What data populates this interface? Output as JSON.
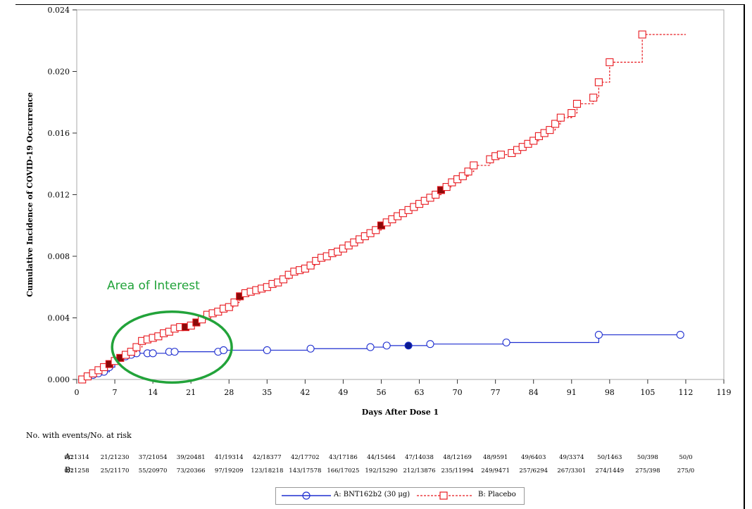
{
  "chart_data": {
    "type": "line",
    "ylabel": "Cumulative Incidence of COVID-19 Occurrence",
    "xlabel": "Days After Dose 1",
    "xlim": [
      0,
      119
    ],
    "ylim": [
      0,
      0.024
    ],
    "x_ticks": [
      0,
      7,
      14,
      21,
      28,
      35,
      42,
      49,
      56,
      63,
      70,
      77,
      84,
      91,
      98,
      105,
      112,
      119
    ],
    "y_ticks": [
      0.0,
      0.004,
      0.008,
      0.012,
      0.016,
      0.02,
      0.024
    ],
    "x_tick_labels": [
      "0",
      "7",
      "14",
      "21",
      "28",
      "35",
      "42",
      "49",
      "56",
      "63",
      "70",
      "77",
      "84",
      "91",
      "98",
      "105",
      "112",
      "119"
    ],
    "y_tick_labels": [
      "0.000",
      "0.004",
      "0.008",
      "0.012",
      "0.016",
      "0.020",
      "0.024"
    ],
    "grid": false,
    "legend_position": "bottom",
    "annotation": {
      "text": "Area of Interest",
      "color": "#22a33a",
      "ellipse_center": [
        17.5,
        0.0021
      ],
      "ellipse_radius": [
        11.0,
        0.0023
      ]
    },
    "series": [
      {
        "name": "A: BNT162b2 (30 μg)",
        "color": "#1f2fd0",
        "line_style": "solid",
        "marker": "circle",
        "points": [
          [
            1,
            0.0
          ],
          [
            2,
            0.0002
          ],
          [
            3,
            0.0003
          ],
          [
            4,
            0.0004
          ],
          [
            5,
            0.0005
          ],
          [
            6,
            0.0008
          ],
          [
            7,
            0.0012
          ],
          [
            8,
            0.0014
          ],
          [
            9,
            0.0015
          ],
          [
            10,
            0.0016
          ],
          [
            11,
            0.0017
          ],
          [
            13,
            0.0017
          ],
          [
            14,
            0.0017
          ],
          [
            17,
            0.0018
          ],
          [
            18,
            0.0018
          ],
          [
            26,
            0.0018
          ],
          [
            27,
            0.0019
          ],
          [
            35,
            0.0019
          ],
          [
            43,
            0.002
          ],
          [
            54,
            0.0021
          ],
          [
            57,
            0.0022
          ],
          [
            61,
            0.0022
          ],
          [
            65,
            0.0023
          ],
          [
            79,
            0.0024
          ],
          [
            96,
            0.0029
          ],
          [
            111,
            0.0029
          ]
        ],
        "filled_points": [
          [
            61,
            0.0022
          ]
        ]
      },
      {
        "name": "B: Placebo",
        "color": "#e8191f",
        "line_style": "dashed",
        "marker": "square",
        "points": [
          [
            1,
            0.0
          ],
          [
            2,
            0.0002
          ],
          [
            3,
            0.0004
          ],
          [
            4,
            0.0006
          ],
          [
            5,
            0.0008
          ],
          [
            6,
            0.001
          ],
          [
            7,
            0.0012
          ],
          [
            8,
            0.0014
          ],
          [
            9,
            0.0016
          ],
          [
            10,
            0.0018
          ],
          [
            11,
            0.0021
          ],
          [
            12,
            0.0025
          ],
          [
            13,
            0.0026
          ],
          [
            14,
            0.0027
          ],
          [
            15,
            0.0028
          ],
          [
            16,
            0.003
          ],
          [
            17,
            0.0031
          ],
          [
            18,
            0.0033
          ],
          [
            19,
            0.0034
          ],
          [
            20,
            0.0034
          ],
          [
            21,
            0.0035
          ],
          [
            22,
            0.0037
          ],
          [
            23,
            0.0039
          ],
          [
            24,
            0.0042
          ],
          [
            25,
            0.0043
          ],
          [
            26,
            0.0044
          ],
          [
            27,
            0.0046
          ],
          [
            28,
            0.0047
          ],
          [
            29,
            0.005
          ],
          [
            30,
            0.0054
          ],
          [
            31,
            0.0056
          ],
          [
            32,
            0.0057
          ],
          [
            33,
            0.0058
          ],
          [
            34,
            0.0059
          ],
          [
            35,
            0.006
          ],
          [
            36,
            0.0062
          ],
          [
            37,
            0.0063
          ],
          [
            38,
            0.0065
          ],
          [
            39,
            0.0068
          ],
          [
            40,
            0.007
          ],
          [
            41,
            0.0071
          ],
          [
            42,
            0.0072
          ],
          [
            43,
            0.0074
          ],
          [
            44,
            0.0077
          ],
          [
            45,
            0.0079
          ],
          [
            46,
            0.008
          ],
          [
            47,
            0.0082
          ],
          [
            48,
            0.0083
          ],
          [
            49,
            0.0085
          ],
          [
            50,
            0.0087
          ],
          [
            51,
            0.0089
          ],
          [
            52,
            0.0091
          ],
          [
            53,
            0.0093
          ],
          [
            54,
            0.0095
          ],
          [
            55,
            0.0097
          ],
          [
            56,
            0.01
          ],
          [
            57,
            0.0102
          ],
          [
            58,
            0.0104
          ],
          [
            59,
            0.0106
          ],
          [
            60,
            0.0108
          ],
          [
            61,
            0.011
          ],
          [
            62,
            0.0112
          ],
          [
            63,
            0.0114
          ],
          [
            64,
            0.0116
          ],
          [
            65,
            0.0118
          ],
          [
            66,
            0.012
          ],
          [
            67,
            0.0123
          ],
          [
            68,
            0.0125
          ],
          [
            69,
            0.0128
          ],
          [
            70,
            0.013
          ],
          [
            71,
            0.0132
          ],
          [
            72,
            0.0135
          ],
          [
            73,
            0.0139
          ],
          [
            76,
            0.0143
          ],
          [
            77,
            0.0145
          ],
          [
            78,
            0.0146
          ],
          [
            80,
            0.0147
          ],
          [
            81,
            0.0149
          ],
          [
            82,
            0.0151
          ],
          [
            83,
            0.0153
          ],
          [
            84,
            0.0155
          ],
          [
            85,
            0.0158
          ],
          [
            86,
            0.016
          ],
          [
            87,
            0.0162
          ],
          [
            88,
            0.0166
          ],
          [
            89,
            0.017
          ],
          [
            91,
            0.0173
          ],
          [
            92,
            0.0179
          ],
          [
            95,
            0.0183
          ],
          [
            96,
            0.0193
          ],
          [
            98,
            0.0206
          ],
          [
            104,
            0.0224
          ],
          [
            112,
            0.0224
          ]
        ],
        "filled_points": [
          [
            6,
            0.001
          ],
          [
            8,
            0.0014
          ],
          [
            20,
            0.0034
          ],
          [
            22,
            0.0037
          ],
          [
            30,
            0.0054
          ],
          [
            56,
            0.01
          ],
          [
            67,
            0.0123
          ]
        ]
      }
    ]
  },
  "risk_table": {
    "title": "No. with events/No. at risk",
    "rows": [
      {
        "label": "A:",
        "values": [
          "0/21314",
          "21/21230",
          "37/21054",
          "39/20481",
          "41/19314",
          "42/18377",
          "42/17702",
          "43/17186",
          "44/15464",
          "47/14038",
          "48/12169",
          "48/9591",
          "49/6403",
          "49/3374",
          "50/1463",
          "50/398",
          "50/0"
        ]
      },
      {
        "label": "B:",
        "values": [
          "0/21258",
          "25/21170",
          "55/20970",
          "73/20366",
          "97/19209",
          "123/18218",
          "143/17578",
          "166/17025",
          "192/15290",
          "212/13876",
          "235/11994",
          "249/9471",
          "257/6294",
          "267/3301",
          "274/1449",
          "275/398",
          "275/0"
        ]
      }
    ]
  },
  "legend": {
    "a_label": "A: BNT162b2 (30 μg)",
    "b_label": "B: Placebo"
  }
}
